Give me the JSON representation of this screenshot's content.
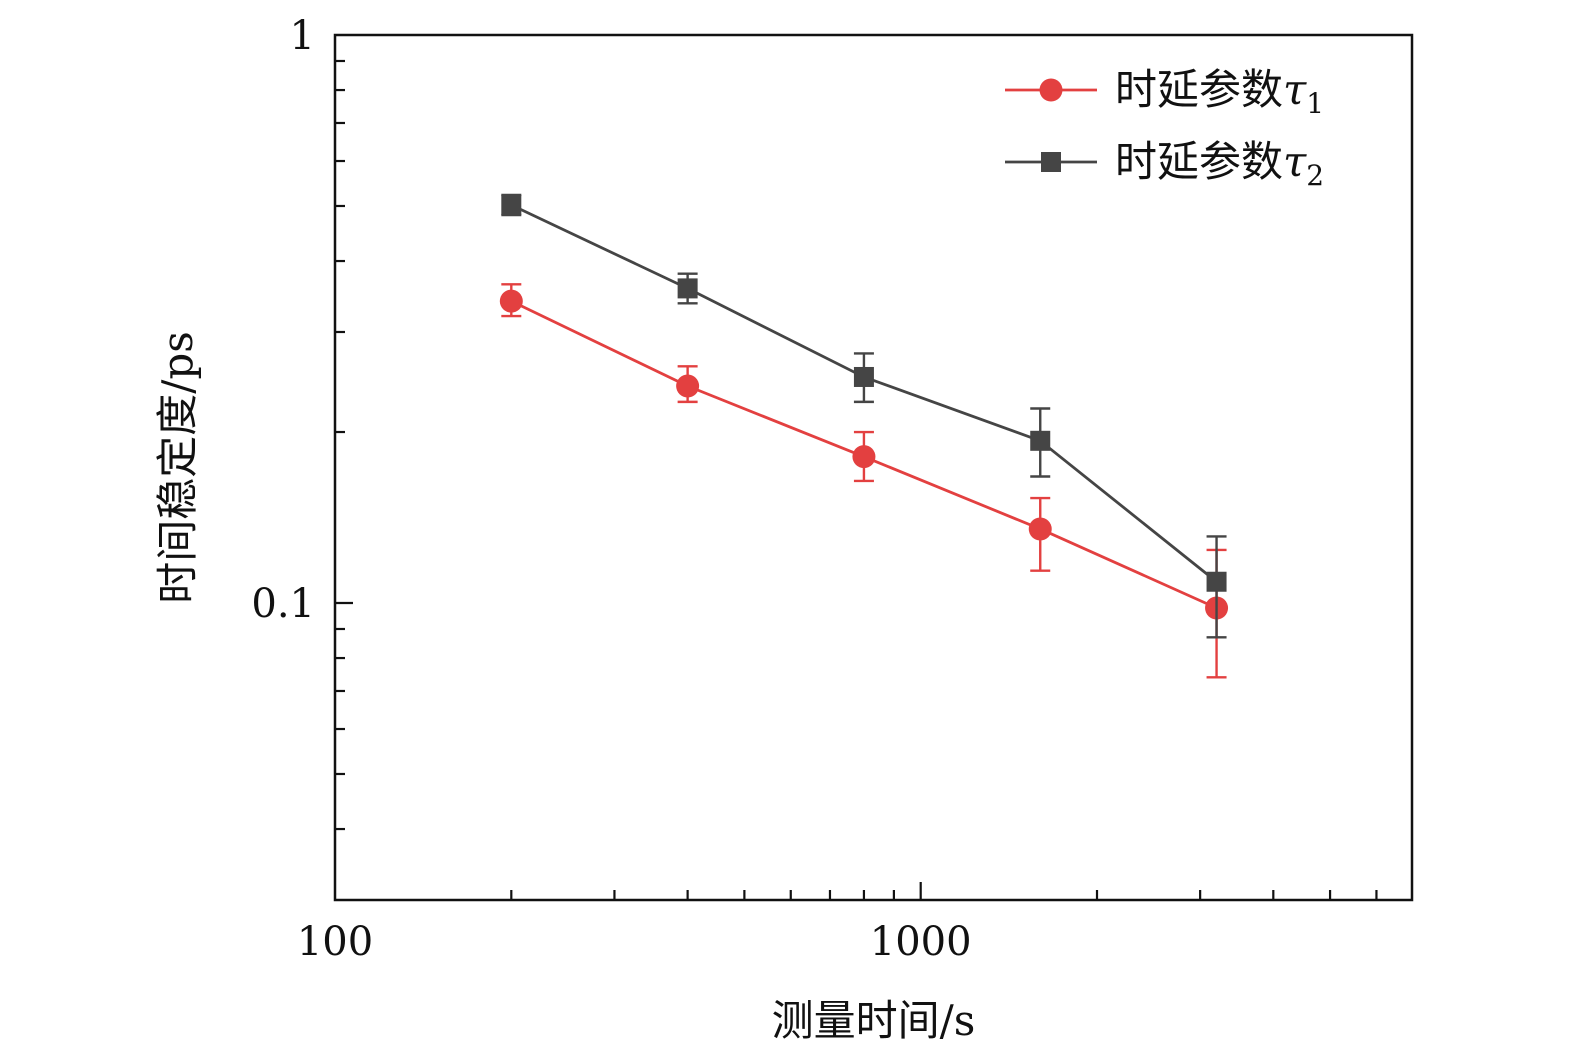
{
  "chart_data": {
    "type": "line",
    "title": "",
    "xlabel": "测量时间/s",
    "ylabel": "时间稳定度/ps",
    "xscale": "log",
    "yscale": "log",
    "xlim": [
      100,
      6900
    ],
    "ylim": [
      0.03,
      1
    ],
    "xticks": [
      {
        "value": 100,
        "label": "100"
      },
      {
        "value": 1000,
        "label": "1000"
      }
    ],
    "yticks": [
      {
        "value": 0.1,
        "label": "0.1"
      },
      {
        "value": 1,
        "label": "1"
      }
    ],
    "legend_position": "top-right",
    "series": [
      {
        "name": "时延参数τ1",
        "legend_base": "时延参数",
        "legend_symbol": "τ",
        "legend_sub": "1",
        "color": "#e34040",
        "marker": "circle",
        "x": [
          200,
          400,
          800,
          1600,
          3200
        ],
        "y": [
          0.34,
          0.241,
          0.181,
          0.135,
          0.098
        ],
        "err_low": [
          0.32,
          0.226,
          0.164,
          0.114,
          0.074
        ],
        "err_high": [
          0.364,
          0.261,
          0.2,
          0.153,
          0.124
        ]
      },
      {
        "name": "时延参数τ2",
        "legend_base": "时延参数",
        "legend_symbol": "τ",
        "legend_sub": "2",
        "color": "#454545",
        "marker": "square",
        "x": [
          200,
          400,
          800,
          1600,
          3200
        ],
        "y": [
          0.502,
          0.358,
          0.25,
          0.193,
          0.109
        ],
        "err_low": [
          0.482,
          0.337,
          0.226,
          0.167,
          0.087
        ],
        "err_high": [
          0.523,
          0.38,
          0.275,
          0.22,
          0.131
        ]
      }
    ]
  }
}
